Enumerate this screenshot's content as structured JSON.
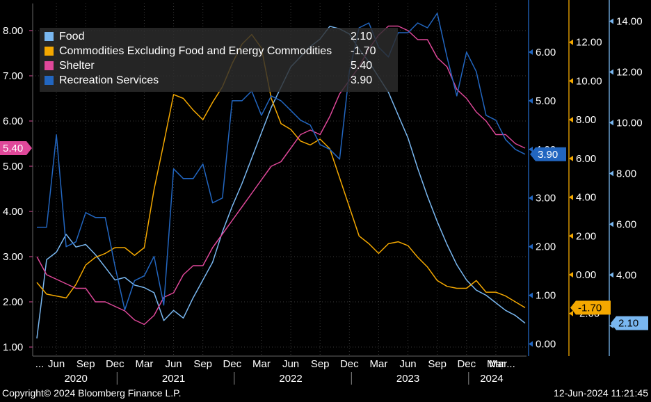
{
  "chart_data": {
    "type": "line",
    "x_start": "2020-04",
    "x_end": "2024-05",
    "tick_months": [
      [
        "Jun",
        "2020-06"
      ],
      [
        "Sep",
        "2020-09"
      ],
      [
        "Dec",
        "2020-12"
      ],
      [
        "Mar",
        "2021-03"
      ],
      [
        "Jun",
        "2021-06"
      ],
      [
        "Sep",
        "2021-09"
      ],
      [
        "Dec",
        "2021-12"
      ],
      [
        "Mar",
        "2022-03"
      ],
      [
        "Jun",
        "2022-06"
      ],
      [
        "Sep",
        "2022-09"
      ],
      [
        "Dec",
        "2022-12"
      ],
      [
        "Mar",
        "2023-03"
      ],
      [
        "Jun",
        "2023-06"
      ],
      [
        "Sep",
        "2023-09"
      ],
      [
        "Dec",
        "2023-12"
      ],
      [
        "Mar",
        "2024-03"
      ]
    ],
    "first_tick_label": "...",
    "last_tick_label": "Mar...",
    "years": [
      "2020",
      "2021",
      "2022",
      "2023",
      "2024"
    ],
    "axes": {
      "shelter": {
        "ylim": [
          0.8,
          8.6
        ],
        "ticks": [
          "1.00",
          "2.00",
          "3.00",
          "4.00",
          "5.00",
          "6.00",
          "7.00",
          "8.00"
        ],
        "color": "#e0489a"
      },
      "recreation": {
        "ylim": [
          -0.25,
          7.0
        ],
        "ticks": [
          "0.00",
          "1.00",
          "2.00",
          "3.00",
          "4.00",
          "5.00",
          "6.00"
        ],
        "color": "#2266c0"
      },
      "commodities": {
        "ylim": [
          -4.2,
          14.0
        ],
        "ticks": [
          "-2.00",
          "0.00",
          "2.00",
          "4.00",
          "6.00",
          "8.00",
          "10.00",
          "12.00"
        ],
        "color": "#f4a800"
      },
      "food": {
        "ylim": [
          0.8,
          14.7
        ],
        "ticks": [
          "2.00",
          "4.00",
          "6.00",
          "8.00",
          "10.00",
          "12.00",
          "14.00"
        ],
        "color": "#79b7f0"
      }
    },
    "series": [
      {
        "name": "Food",
        "axis": "food",
        "color": "#79b7f0",
        "last": "2.10",
        "values": [
          1.5,
          4.6,
          4.9,
          5.6,
          5.1,
          5.2,
          4.8,
          4.3,
          3.8,
          3.9,
          3.6,
          3.5,
          3.3,
          2.2,
          2.6,
          2.3,
          3.1,
          3.8,
          4.5,
          5.7,
          6.7,
          7.6,
          8.6,
          9.6,
          10.6,
          11.4,
          12.2,
          12.6,
          13.0,
          13.3,
          13.8,
          13.7,
          13.5,
          12.9,
          12.4,
          11.8,
          11.2,
          10.3,
          9.4,
          8.2,
          7.1,
          6.1,
          5.2,
          4.4,
          3.8,
          3.4,
          3.2,
          2.9,
          2.6,
          2.4,
          2.1
        ]
      },
      {
        "name": "Commodities Excluding Food and Energy Commodities",
        "axis": "commodities",
        "color": "#f4a800",
        "last": "-1.70",
        "values": [
          -0.4,
          -1.0,
          -1.1,
          -1.2,
          -0.5,
          0.5,
          0.9,
          1.1,
          1.4,
          1.4,
          1.0,
          1.4,
          4.4,
          6.8,
          9.3,
          9.1,
          8.5,
          8.0,
          8.9,
          9.7,
          10.9,
          11.9,
          12.4,
          11.7,
          9.1,
          7.8,
          7.5,
          6.9,
          6.7,
          7.0,
          6.5,
          5.0,
          3.5,
          2.0,
          1.6,
          1.1,
          1.6,
          1.7,
          1.5,
          0.9,
          0.4,
          -0.3,
          -0.6,
          -0.7,
          -0.7,
          -0.3,
          -0.9,
          -0.9,
          -1.1,
          -1.4,
          -1.7
        ]
      },
      {
        "name": "Shelter",
        "axis": "shelter",
        "color": "#e0489a",
        "last": "5.40",
        "values": [
          3.0,
          2.6,
          2.5,
          2.4,
          2.3,
          2.3,
          2.0,
          2.0,
          1.9,
          1.8,
          1.6,
          1.5,
          1.7,
          2.1,
          2.2,
          2.6,
          2.8,
          2.8,
          3.2,
          3.5,
          3.8,
          4.1,
          4.4,
          4.7,
          5.0,
          5.1,
          5.4,
          5.7,
          5.8,
          5.7,
          6.1,
          6.6,
          6.9,
          7.2,
          7.6,
          7.9,
          8.1,
          8.1,
          8.0,
          7.8,
          7.8,
          7.4,
          7.2,
          6.7,
          6.5,
          6.2,
          6.0,
          5.7,
          5.7,
          5.5,
          5.4
        ]
      },
      {
        "name": "Recreation Services",
        "axis": "recreation",
        "color": "#2266c0",
        "last": "3.90",
        "values": [
          2.4,
          2.4,
          4.3,
          2.0,
          2.1,
          2.7,
          2.6,
          2.6,
          1.6,
          0.7,
          1.3,
          1.4,
          1.8,
          0.8,
          3.6,
          3.4,
          3.4,
          3.7,
          2.9,
          3.0,
          5.0,
          5.0,
          5.2,
          4.7,
          5.1,
          5.0,
          4.8,
          4.6,
          4.5,
          4.1,
          4.0,
          3.8,
          5.6,
          6.5,
          6.6,
          6.1,
          5.9,
          6.4,
          6.4,
          6.6,
          6.5,
          6.8,
          5.9,
          5.1,
          6.0,
          5.6,
          4.7,
          4.6,
          4.2,
          4.0,
          3.9
        ]
      }
    ]
  },
  "footer": {
    "copyright": "Copyright© 2024 Bloomberg Finance L.P.",
    "timestamp": "12-Jun-2024 11:21:45"
  }
}
